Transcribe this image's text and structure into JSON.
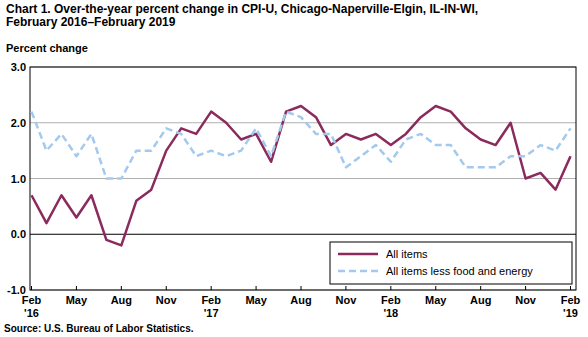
{
  "chart_data": {
    "type": "line",
    "title": "Chart 1. Over-the-year percent change in CPI-U, Chicago-Naperville-Elgin, IL-IN-WI,\nFebruary 2016–February 2019",
    "y_label": "Percent change",
    "source": "Source: U.S. Bureau of Labor Statistics.",
    "categories": [
      "Feb\n'16",
      null,
      null,
      "May",
      null,
      null,
      "Aug",
      null,
      null,
      "Nov",
      null,
      null,
      "Feb\n'17",
      null,
      null,
      "May",
      null,
      null,
      "Aug",
      null,
      null,
      "Nov",
      null,
      null,
      "Feb\n'18",
      null,
      null,
      "May",
      null,
      null,
      "Aug",
      null,
      null,
      "Nov",
      null,
      null,
      "Feb\n'19"
    ],
    "series": [
      {
        "name": "All items",
        "color": "#8b2a5c",
        "line_style": "solid",
        "values": [
          0.7,
          0.2,
          0.7,
          0.3,
          0.7,
          -0.1,
          -0.2,
          0.6,
          0.8,
          1.5,
          1.9,
          1.8,
          2.2,
          2.0,
          1.7,
          1.8,
          1.3,
          2.2,
          2.3,
          2.1,
          1.6,
          1.8,
          1.7,
          1.8,
          1.6,
          1.8,
          2.1,
          2.3,
          2.2,
          1.9,
          1.7,
          1.6,
          2.0,
          1.0,
          1.1,
          0.8,
          1.4
        ]
      },
      {
        "name": "All items less food and energy",
        "color": "#a3c9ee",
        "line_style": "dashed",
        "values": [
          2.2,
          1.5,
          1.8,
          1.4,
          1.8,
          1.0,
          1.0,
          1.5,
          1.5,
          1.9,
          1.8,
          1.4,
          1.5,
          1.4,
          1.5,
          1.9,
          1.4,
          2.2,
          2.1,
          1.8,
          1.8,
          1.2,
          1.4,
          1.6,
          1.3,
          1.7,
          1.8,
          1.6,
          1.6,
          1.2,
          1.2,
          1.2,
          1.4,
          1.4,
          1.6,
          1.5,
          1.9
        ]
      }
    ],
    "ylim": [
      -1,
      3
    ],
    "yticks": [
      {
        "value": -1,
        "label": "-1.0"
      },
      {
        "value": 0,
        "label": "0.0"
      },
      {
        "value": 1,
        "label": "1.0"
      },
      {
        "value": 2,
        "label": "2.0"
      },
      {
        "value": 3,
        "label": "3.0"
      }
    ],
    "grid": true,
    "legend": "lower right"
  }
}
